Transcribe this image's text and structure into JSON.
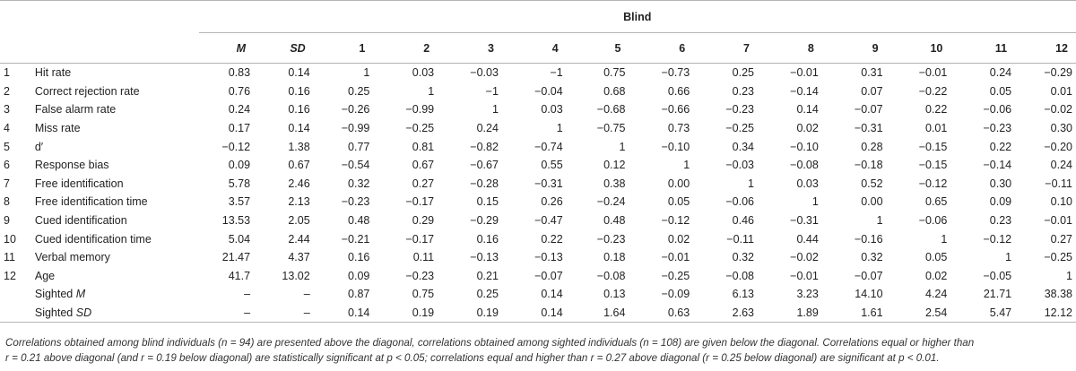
{
  "table": {
    "group_title": "Blind",
    "columns": [
      "M",
      "SD",
      "1",
      "2",
      "3",
      "4",
      "5",
      "6",
      "7",
      "8",
      "9",
      "10",
      "11",
      "12"
    ],
    "rows": [
      {
        "idx": "1",
        "name": "Hit rate",
        "values": [
          "0.83",
          "0.14",
          "1",
          "0.03",
          "−0.03",
          "−1",
          "0.75",
          "−0.73",
          "0.25",
          "−0.01",
          "0.31",
          "−0.01",
          "0.24",
          "−0.29"
        ]
      },
      {
        "idx": "2",
        "name": "Correct rejection rate",
        "values": [
          "0.76",
          "0.16",
          "0.25",
          "1",
          "−1",
          "−0.04",
          "0.68",
          "0.66",
          "0.23",
          "−0.14",
          "0.07",
          "−0.22",
          "0.05",
          "0.01"
        ]
      },
      {
        "idx": "3",
        "name": "False alarm rate",
        "values": [
          "0.24",
          "0.16",
          "−0.26",
          "−0.99",
          "1",
          "0.03",
          "−0.68",
          "−0.66",
          "−0.23",
          "0.14",
          "−0.07",
          "0.22",
          "−0.06",
          "−0.02"
        ]
      },
      {
        "idx": "4",
        "name": "Miss rate",
        "values": [
          "0.17",
          "0.14",
          "−0.99",
          "−0.25",
          "0.24",
          "1",
          "−0.75",
          "0.73",
          "−0.25",
          "0.02",
          "−0.31",
          "0.01",
          "−0.23",
          "0.30"
        ]
      },
      {
        "idx": "5",
        "name": "d′",
        "values": [
          "−0.12",
          "1.38",
          "0.77",
          "0.81",
          "−0.82",
          "−0.74",
          "1",
          "−0.10",
          "0.34",
          "−0.10",
          "0.28",
          "−0.15",
          "0.22",
          "−0.20"
        ]
      },
      {
        "idx": "6",
        "name": "Response bias",
        "values": [
          "0.09",
          "0.67",
          "−0.54",
          "0.67",
          "−0.67",
          "0.55",
          "0.12",
          "1",
          "−0.03",
          "−0.08",
          "−0.18",
          "−0.15",
          "−0.14",
          "0.24"
        ]
      },
      {
        "idx": "7",
        "name": "Free identification",
        "values": [
          "5.78",
          "2.46",
          "0.32",
          "0.27",
          "−0.28",
          "−0.31",
          "0.38",
          "0.00",
          "1",
          "0.03",
          "0.52",
          "−0.12",
          "0.30",
          "−0.11"
        ]
      },
      {
        "idx": "8",
        "name": "Free identification time",
        "values": [
          "3.57",
          "2.13",
          "−0.23",
          "−0.17",
          "0.15",
          "0.26",
          "−0.24",
          "0.05",
          "−0.06",
          "1",
          "0.00",
          "0.65",
          "0.09",
          "0.10"
        ]
      },
      {
        "idx": "9",
        "name": "Cued identification",
        "values": [
          "13.53",
          "2.05",
          "0.48",
          "0.29",
          "−0.29",
          "−0.47",
          "0.48",
          "−0.12",
          "0.46",
          "−0.31",
          "1",
          "−0.06",
          "0.23",
          "−0.01"
        ]
      },
      {
        "idx": "10",
        "name": "Cued identification time",
        "values": [
          "5.04",
          "2.44",
          "−0.21",
          "−0.17",
          "0.16",
          "0.22",
          "−0.23",
          "0.02",
          "−0.11",
          "0.44",
          "−0.16",
          "1",
          "−0.12",
          "0.27"
        ]
      },
      {
        "idx": "11",
        "name": "Verbal memory",
        "values": [
          "21.47",
          "4.37",
          "0.16",
          "0.11",
          "−0.13",
          "−0.13",
          "0.18",
          "−0.01",
          "0.32",
          "−0.02",
          "0.32",
          "0.05",
          "1",
          "−0.25"
        ]
      },
      {
        "idx": "12",
        "name": "Age",
        "values": [
          "41.7",
          "13.02",
          "0.09",
          "−0.23",
          "0.21",
          "−0.07",
          "−0.08",
          "−0.25",
          "−0.08",
          "−0.01",
          "−0.07",
          "0.02",
          "−0.05",
          "1"
        ]
      }
    ],
    "sighted_m": {
      "label_prefix": "Sighted ",
      "label_italic": "M",
      "values": [
        "–",
        "–",
        "0.87",
        "0.75",
        "0.25",
        "0.14",
        "0.13",
        "−0.09",
        "6.13",
        "3.23",
        "14.10",
        "4.24",
        "21.71",
        "38.38"
      ]
    },
    "sighted_sd": {
      "label_prefix": "Sighted ",
      "label_italic": "SD",
      "values": [
        "–",
        "–",
        "0.14",
        "0.19",
        "0.19",
        "0.14",
        "1.64",
        "0.63",
        "2.63",
        "1.89",
        "1.61",
        "2.54",
        "5.47",
        "12.12"
      ]
    }
  },
  "note": {
    "line1": "Correlations obtained among blind individuals (n = 94) are presented above the diagonal, correlations obtained among sighted individuals (n = 108) are given below the diagonal. Correlations equal or higher than",
    "line2": "r = 0.21 above diagonal (and r = 0.19 below diagonal) are statistically significant at p < 0.05; correlations equal and higher than r = 0.27 above diagonal (r = 0.25 below diagonal) are significant at p < 0.01."
  }
}
